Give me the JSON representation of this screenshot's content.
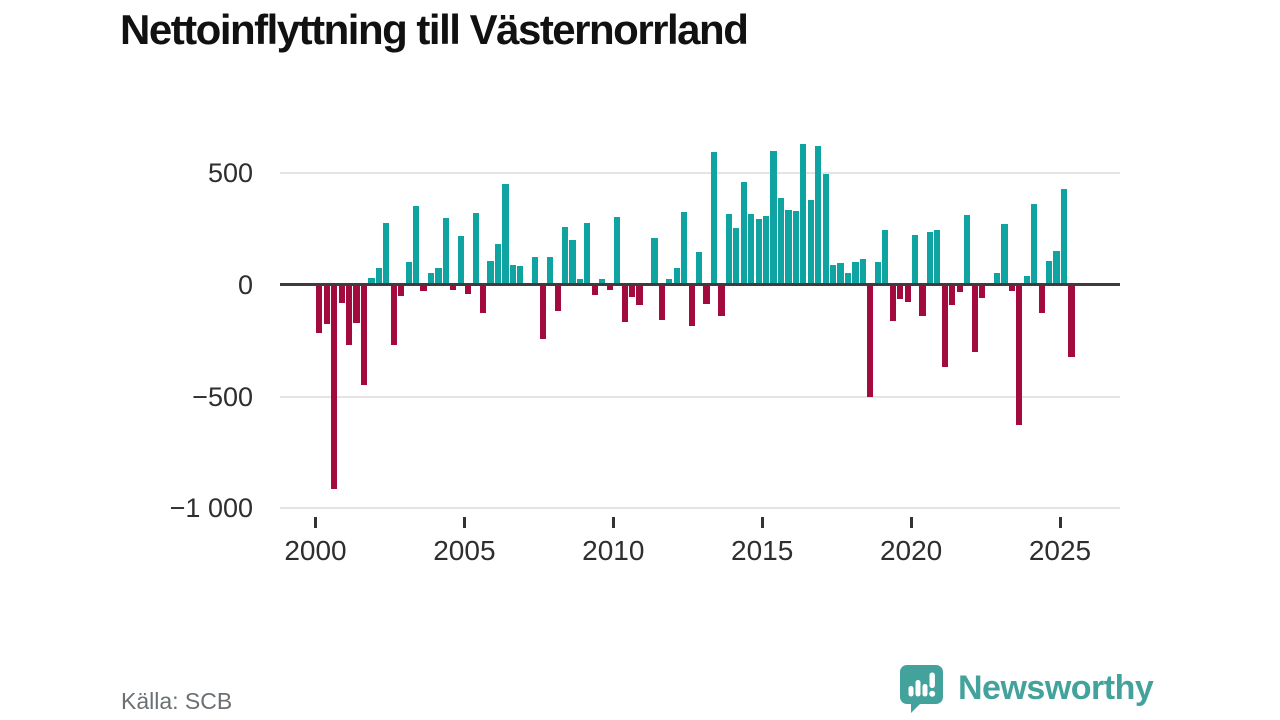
{
  "page": {
    "title": "Nettoinflyttning till Västernorrland",
    "source_note": "Källa: SCB"
  },
  "branding": {
    "wordmark": "Newsworthy",
    "icon": "newsworthy-bar-chart-bubble-icon",
    "brand_color": "#43A39C"
  },
  "colors": {
    "positive_bar": "#0FA3A1",
    "negative_bar": "#A30B3E",
    "zero_axis": "#3D3D3D",
    "gridline": "#E4E4E4",
    "axis_text": "#2E2E2E",
    "source_text": "#6B7074",
    "background": "#FFFFFF"
  },
  "chart_data": {
    "type": "bar",
    "title": "Nettoinflyttning till Västernorrland",
    "xlabel": "",
    "ylabel": "",
    "frequency": "quarterly",
    "grid": "horizontal",
    "legend": "none",
    "ylim": [
      -1000,
      650
    ],
    "y_axis": {
      "tick_labels": [
        "500",
        "0",
        "−500",
        "−1 000"
      ],
      "tick_values": [
        500,
        0,
        -500,
        -1000
      ]
    },
    "x_axis": {
      "tick_labels": [
        "2000",
        "2005",
        "2010",
        "2015",
        "2020",
        "2025"
      ],
      "tick_values": [
        2000,
        2005,
        2010,
        2015,
        2020,
        2025
      ]
    },
    "categories": [
      "2000Q1",
      "2000Q2",
      "2000Q3",
      "2000Q4",
      "2001Q1",
      "2001Q2",
      "2001Q3",
      "2001Q4",
      "2002Q1",
      "2002Q2",
      "2002Q3",
      "2002Q4",
      "2003Q1",
      "2003Q2",
      "2003Q3",
      "2003Q4",
      "2004Q1",
      "2004Q2",
      "2004Q3",
      "2004Q4",
      "2005Q1",
      "2005Q2",
      "2005Q3",
      "2005Q4",
      "2006Q1",
      "2006Q2",
      "2006Q3",
      "2006Q4",
      "2007Q1",
      "2007Q2",
      "2007Q3",
      "2007Q4",
      "2008Q1",
      "2008Q2",
      "2008Q3",
      "2008Q4",
      "2009Q1",
      "2009Q2",
      "2009Q3",
      "2009Q4",
      "2010Q1",
      "2010Q2",
      "2010Q3",
      "2010Q4",
      "2011Q1",
      "2011Q2",
      "2011Q3",
      "2011Q4",
      "2012Q1",
      "2012Q2",
      "2012Q3",
      "2012Q4",
      "2013Q1",
      "2013Q2",
      "2013Q3",
      "2013Q4",
      "2014Q1",
      "2014Q2",
      "2014Q3",
      "2014Q4",
      "2015Q1",
      "2015Q2",
      "2015Q3",
      "2015Q4",
      "2016Q1",
      "2016Q2",
      "2016Q3",
      "2016Q4",
      "2017Q1",
      "2017Q2",
      "2017Q3",
      "2017Q4",
      "2018Q1",
      "2018Q2",
      "2018Q3",
      "2018Q4",
      "2019Q1",
      "2019Q2",
      "2019Q3",
      "2019Q4",
      "2020Q1",
      "2020Q2",
      "2020Q3",
      "2020Q4",
      "2021Q1",
      "2021Q2",
      "2021Q3",
      "2021Q4",
      "2022Q1",
      "2022Q2",
      "2022Q3",
      "2022Q4",
      "2023Q1",
      "2023Q2",
      "2023Q3",
      "2023Q4",
      "2024Q1",
      "2024Q2",
      "2024Q3",
      "2024Q4",
      "2025Q1",
      "2025Q2"
    ],
    "series": [
      {
        "name": "Nettoinflyttning",
        "values": [
          -215,
          -175,
          -915,
          -82,
          -268,
          -168,
          -446,
          33,
          78,
          277,
          -270,
          -49,
          101,
          355,
          -25,
          55,
          75,
          299,
          -22,
          219,
          -42,
          324,
          -124,
          107,
          182,
          451,
          90,
          85,
          5,
          125,
          -240,
          124,
          -115,
          258,
          201,
          25,
          279,
          -45,
          25,
          -22,
          306,
          -164,
          -55,
          -90,
          5,
          212,
          -157,
          25,
          78,
          328,
          -184,
          149,
          -85,
          594,
          -139,
          316,
          257,
          460,
          316,
          294,
          309,
          600,
          388,
          336,
          331,
          630,
          381,
          624,
          496,
          90,
          100,
          55,
          101,
          115,
          -503,
          101,
          246,
          -161,
          -63,
          -75,
          224,
          -137,
          236,
          246,
          -366,
          -90,
          -30,
          313,
          -299,
          -60,
          5,
          52,
          273,
          -25,
          -627,
          40,
          363,
          -124,
          109,
          154,
          430,
          -321
        ]
      }
    ]
  }
}
